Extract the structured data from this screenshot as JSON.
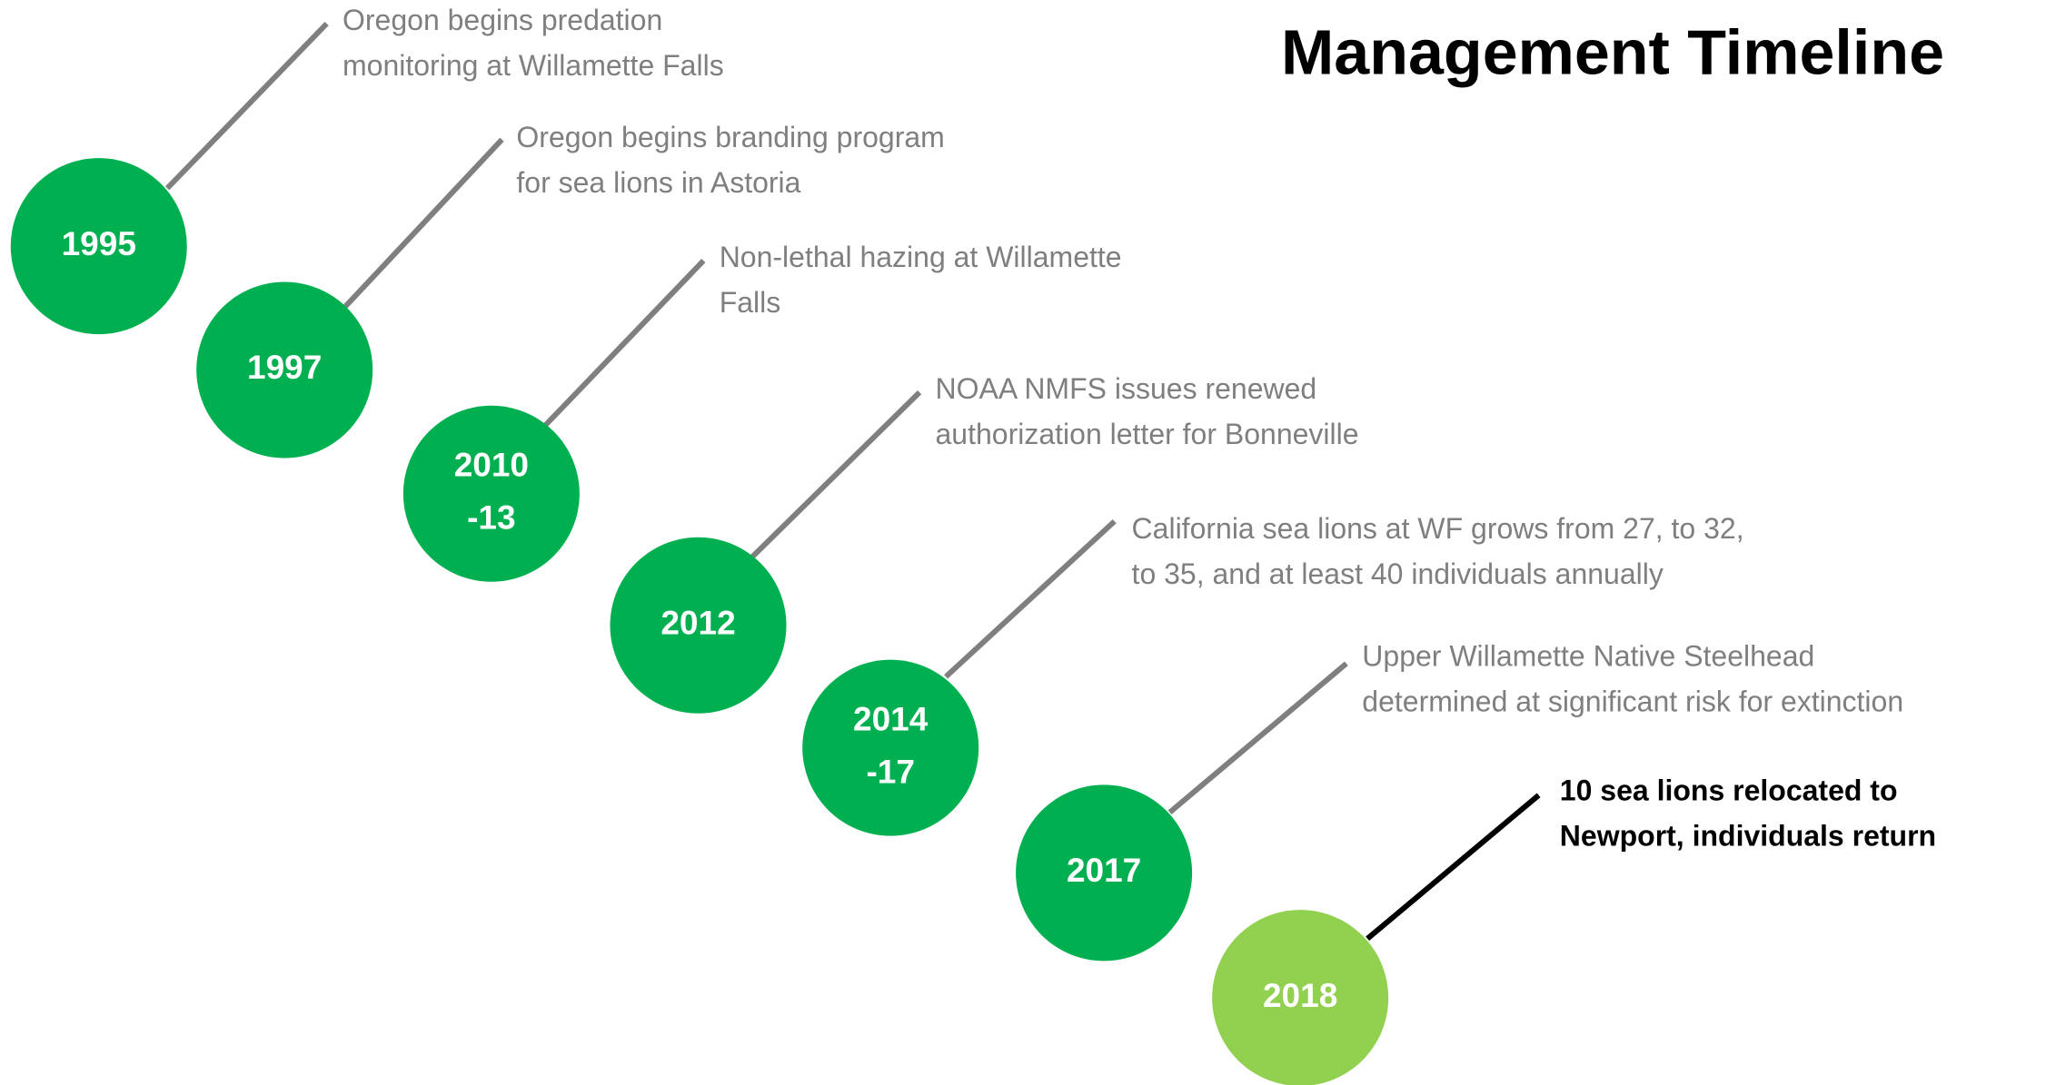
{
  "title": "Management Timeline",
  "events": [
    {
      "year": [
        "1995"
      ],
      "text": [
        "Oregon begins predation",
        "monitoring at Willamette Falls"
      ]
    },
    {
      "year": [
        "1997"
      ],
      "text": [
        "Oregon begins branding program",
        "for sea lions in Astoria"
      ]
    },
    {
      "year": [
        "2010",
        "-13"
      ],
      "text": [
        "Non-lethal hazing at Willamette",
        "Falls"
      ]
    },
    {
      "year": [
        "2012"
      ],
      "text": [
        "NOAA NMFS issues renewed",
        "authorization letter for Bonneville"
      ]
    },
    {
      "year": [
        "2014",
        "-17"
      ],
      "text": [
        "California sea lions at WF grows from 27, to 32,",
        "to 35, and at least 40 individuals annually"
      ]
    },
    {
      "year": [
        "2017"
      ],
      "text": [
        "Upper Willamette Native Steelhead",
        "determined at significant risk for extinction"
      ]
    },
    {
      "year": [
        "2018"
      ],
      "text": [
        "10 sea lions relocated to",
        "Newport, individuals return"
      ]
    }
  ]
}
